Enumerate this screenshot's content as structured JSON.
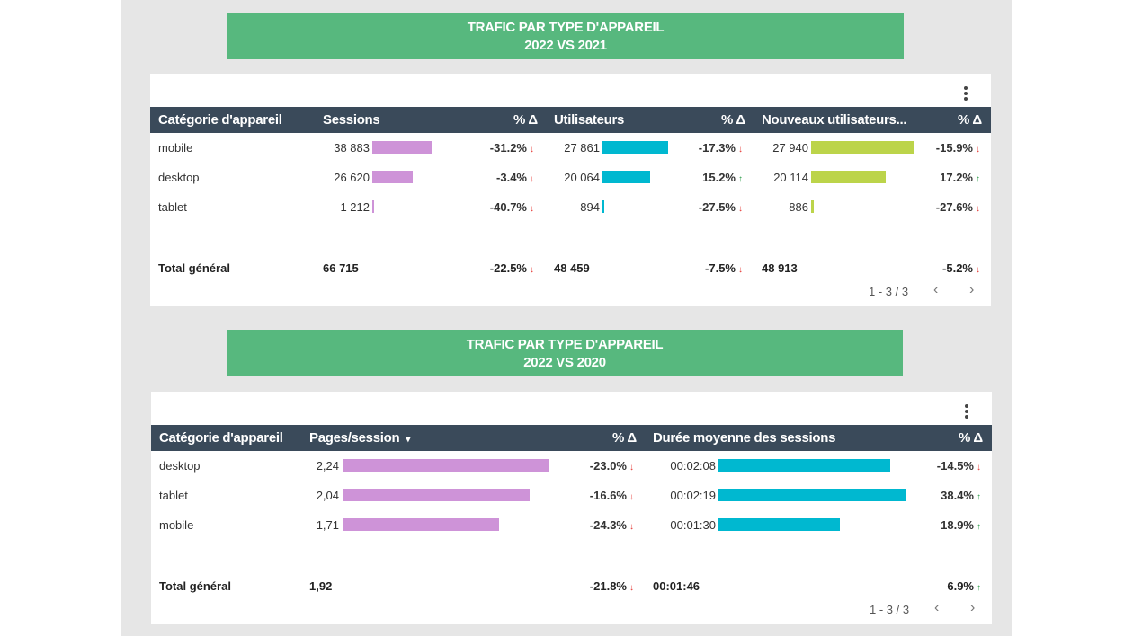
{
  "colors": {
    "banner": "#57b87e",
    "header": "#3a4a5a",
    "sessions_bar": "#ce93d8",
    "users_bar": "#00b8d0",
    "new_users_bar": "#bcd44a",
    "down": "#e53935",
    "up": "#2e9d4a"
  },
  "section1": {
    "banner_line1": "TRAFIC PAR TYPE D'APPAREIL",
    "banner_line2": "2022 VS 2021",
    "headers": [
      "Catégorie d'appareil",
      "Sessions",
      "% Δ",
      "Utilisateurs",
      "% Δ",
      "Nouveaux utilisateurs...",
      "% Δ"
    ],
    "rows": [
      {
        "category": "mobile",
        "sessions": "38 883",
        "sessions_ratio": 1.0,
        "sessions_delta": "-31.2%",
        "sessions_dir": "down",
        "users": "27 861",
        "users_ratio": 1.0,
        "users_delta": "-17.3%",
        "users_dir": "down",
        "new_users": "27 940",
        "new_users_ratio": 1.0,
        "new_users_delta": "-15.9%",
        "new_users_dir": "down"
      },
      {
        "category": "desktop",
        "sessions": "26 620",
        "sessions_ratio": 0.68,
        "sessions_delta": "-3.4%",
        "sessions_dir": "down",
        "users": "20 064",
        "users_ratio": 0.72,
        "users_delta": "15.2%",
        "users_dir": "up",
        "new_users": "20 114",
        "new_users_ratio": 0.72,
        "new_users_delta": "17.2%",
        "new_users_dir": "up"
      },
      {
        "category": "tablet",
        "sessions": "1 212",
        "sessions_ratio": 0.03,
        "sessions_delta": "-40.7%",
        "sessions_dir": "down",
        "users": "894",
        "users_ratio": 0.03,
        "users_delta": "-27.5%",
        "users_dir": "down",
        "new_users": "886",
        "new_users_ratio": 0.03,
        "new_users_delta": "-27.6%",
        "new_users_dir": "down"
      }
    ],
    "total": {
      "label": "Total général",
      "sessions": "66 715",
      "sessions_delta": "-22.5%",
      "sessions_dir": "down",
      "users": "48 459",
      "users_delta": "-7.5%",
      "users_dir": "down",
      "new_users": "48 913",
      "new_users_delta": "-5.2%",
      "new_users_dir": "down"
    },
    "pagination": "1 - 3 / 3"
  },
  "section2": {
    "banner_line1": "TRAFIC PAR TYPE D'APPAREIL",
    "banner_line2": "2022 VS 2020",
    "headers": [
      "Catégorie d'appareil",
      "Pages/session",
      "% Δ",
      "Durée moyenne des sessions",
      "% Δ"
    ],
    "rows": [
      {
        "category": "desktop",
        "pages": "2,24",
        "pages_ratio": 1.0,
        "pages_delta": "-23.0%",
        "pages_dir": "down",
        "duration": "00:02:08",
        "duration_ratio": 0.92,
        "duration_delta": "-14.5%",
        "duration_dir": "down"
      },
      {
        "category": "tablet",
        "pages": "2,04",
        "pages_ratio": 0.91,
        "pages_delta": "-16.6%",
        "pages_dir": "down",
        "duration": "00:02:19",
        "duration_ratio": 1.0,
        "duration_delta": "38.4%",
        "duration_dir": "up"
      },
      {
        "category": "mobile",
        "pages": "1,71",
        "pages_ratio": 0.76,
        "pages_delta": "-24.3%",
        "pages_dir": "down",
        "duration": "00:01:30",
        "duration_ratio": 0.65,
        "duration_delta": "18.9%",
        "duration_dir": "up"
      }
    ],
    "total": {
      "label": "Total général",
      "pages": "1,92",
      "pages_delta": "-21.8%",
      "pages_dir": "down",
      "duration": "00:01:46",
      "duration_delta": "6.9%",
      "duration_dir": "up"
    },
    "pagination": "1 - 3 / 3"
  },
  "icons": {
    "arrow_down": "↓",
    "arrow_up": "↑",
    "sort_caret": "▾",
    "prev": "‹",
    "next": "›"
  }
}
